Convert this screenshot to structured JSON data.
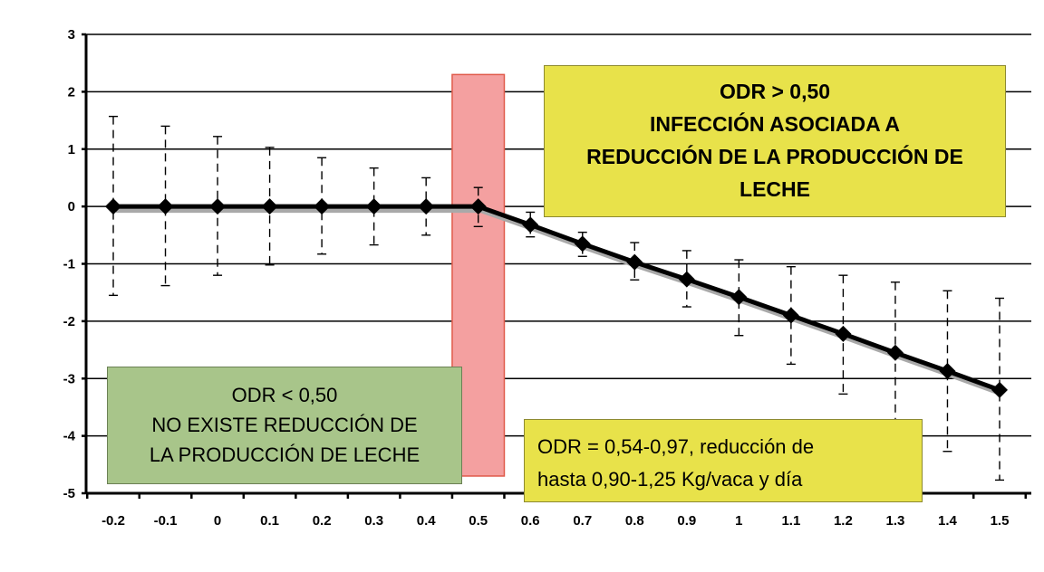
{
  "chart_data": {
    "type": "line",
    "title": "",
    "xlabel": "",
    "ylabel": "",
    "x": [
      -0.2,
      -0.1,
      0,
      0.1,
      0.2,
      0.3,
      0.4,
      0.5,
      0.6,
      0.7,
      0.8,
      0.9,
      1,
      1.1,
      1.2,
      1.3,
      1.4,
      1.5
    ],
    "x_tick_labels": [
      "-0.2",
      "-0.1",
      "0",
      "0.1",
      "0.2",
      "0.3",
      "0.4",
      "0.5",
      "0.6",
      "0.7",
      "0.8",
      "0.9",
      "1",
      "1.1",
      "1.2",
      "1.3",
      "1.4",
      "1.5"
    ],
    "ylim": [
      -5,
      3
    ],
    "y_ticks": [
      3,
      2,
      1,
      0,
      -1,
      -2,
      -3,
      -4,
      -5
    ],
    "y_tick_labels": [
      "3",
      "2",
      "1",
      "0",
      "-1",
      "-2",
      "-3",
      "-4",
      "-5"
    ],
    "grid": true,
    "series": [
      {
        "values": [
          0,
          0,
          0,
          0,
          0,
          0,
          0,
          0,
          -0.32,
          -0.65,
          -0.97,
          -1.27,
          -1.58,
          -1.9,
          -2.22,
          -2.55,
          -2.87,
          -3.2
        ],
        "error_upper": [
          1.57,
          1.4,
          1.22,
          1.03,
          0.85,
          0.67,
          0.5,
          0.33,
          -0.1,
          -0.45,
          -0.63,
          -0.77,
          -0.93,
          -1.05,
          -1.2,
          -1.32,
          -1.47,
          -1.6
        ],
        "error_lower": [
          -1.55,
          -1.38,
          -1.2,
          -1.02,
          -0.83,
          -0.67,
          -0.5,
          -0.35,
          -0.53,
          -0.87,
          -1.28,
          -1.75,
          -2.25,
          -2.75,
          -3.27,
          -3.75,
          -4.27,
          -4.77
        ],
        "color": "#000000"
      }
    ],
    "highlight_band": {
      "x_from": 0.45,
      "x_to": 0.55,
      "y_from": -4.7,
      "y_to": 2.3,
      "color": "#f4a0a0",
      "border": "#e05a4a"
    },
    "annotations": [
      {
        "id": "above",
        "lines": [
          "ODR > 0,50",
          "INFECCIÓN ASOCIADA A",
          "REDUCCIÓN DE LA PRODUCCIÓN DE",
          "LECHE"
        ],
        "color": "#e8e24a"
      },
      {
        "id": "below",
        "lines": [
          "ODR < 0,50",
          "NO EXISTE REDUCCIÓN DE",
          "LA PRODUCCIÓN DE LECHE"
        ],
        "color": "#a8c58a"
      },
      {
        "id": "range",
        "lines": [
          "ODR = 0,54-0,97, reducción de",
          "hasta 0,90-1,25 Kg/vaca y día"
        ],
        "color": "#e8e24a"
      }
    ]
  }
}
